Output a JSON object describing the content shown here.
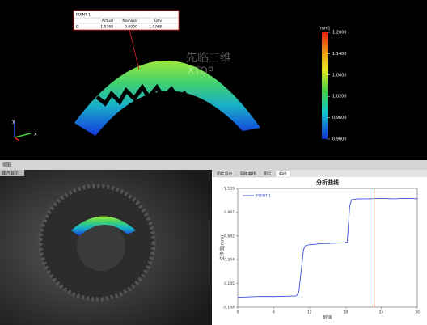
{
  "view3d": {
    "tooltip": {
      "title": "POINT 1",
      "columns": [
        "Actual",
        "Nominal",
        "Dev"
      ],
      "row_label": "D",
      "row_values": [
        "1.0368",
        "0.0000",
        "1.0368"
      ]
    },
    "color_scale": {
      "unit": "[mm]",
      "lim": [
        0.9,
        1.2
      ],
      "ticks": [
        {
          "value": 1.2,
          "label": "1.2000"
        },
        {
          "value": 1.14,
          "label": "1.1400"
        },
        {
          "value": 1.08,
          "label": "1.0800"
        },
        {
          "value": 1.02,
          "label": "1.0200"
        },
        {
          "value": 0.96,
          "label": "0.9600"
        },
        {
          "value": 0.9,
          "label": "0.9000"
        }
      ]
    },
    "axis_labels": [
      "y",
      "x"
    ],
    "watermark": [
      "先临三维",
      "XTOP"
    ]
  },
  "left_panel": {
    "header": "视图",
    "tab": "图片显示"
  },
  "right_panel": {
    "tabs": [
      "图片显示",
      "网格曲线",
      "图片",
      "曲线"
    ]
  },
  "chart_data": {
    "type": "line",
    "title": "分析曲线",
    "x_label": "时间",
    "y_label": "位移值(mm)",
    "x": [
      0,
      2,
      4,
      6,
      8,
      9.8,
      10.2,
      11,
      11.3,
      12,
      14,
      16,
      17.8,
      18.3,
      18.7,
      19,
      20,
      22,
      24,
      26,
      28,
      30
    ],
    "series": [
      {
        "name": "POINT 1",
        "color": "#3b4fd8",
        "values": [
          0.0,
          0.005,
          0.01,
          0.008,
          0.012,
          0.015,
          0.05,
          0.5,
          0.54,
          0.55,
          0.56,
          0.565,
          0.57,
          0.58,
          0.95,
          1.02,
          1.03,
          1.03,
          1.035,
          1.03,
          1.035,
          1.03
        ]
      }
    ],
    "xlim": [
      0,
      30
    ],
    "xticks": [
      0,
      6,
      12,
      18,
      24,
      30
    ],
    "ylim": [
      -0.104,
      1.139
    ],
    "yticks": [
      -0.104,
      0.145,
      0.394,
      0.642,
      0.891,
      1.139
    ],
    "cursor_x": 22.8,
    "cursor_color": "#e02020",
    "grid": false
  }
}
